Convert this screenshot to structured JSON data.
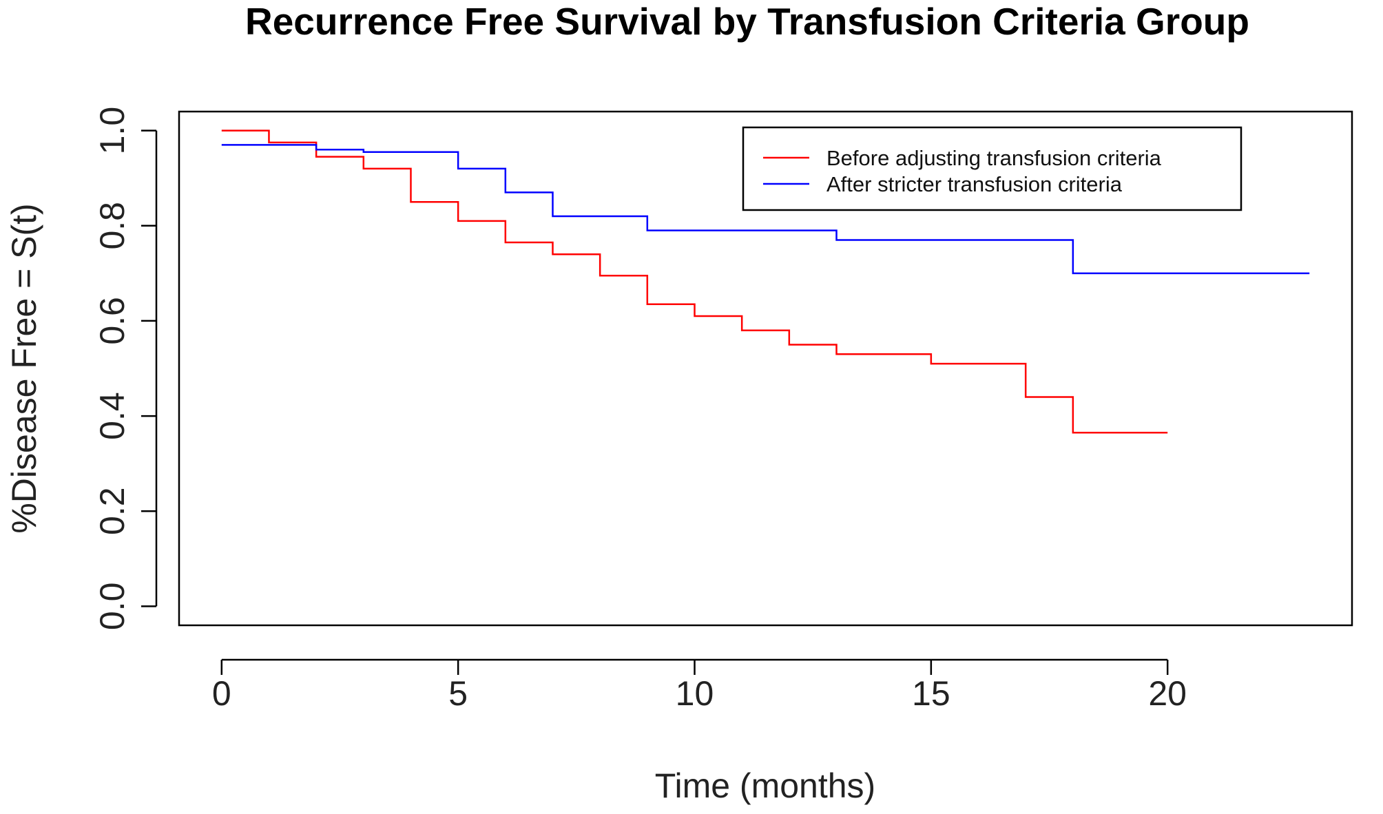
{
  "chart_data": {
    "type": "line",
    "title": "Recurrence Free Survival by Transfusion Criteria Group",
    "xlabel": "Time (months)",
    "ylabel": "%Disease Free = S(t)",
    "xlim": [
      -0.9,
      23.9
    ],
    "ylim": [
      -0.04,
      1.04
    ],
    "xticks": [
      0,
      5,
      10,
      15,
      20
    ],
    "yticks": [
      0.0,
      0.2,
      0.4,
      0.6,
      0.8,
      1.0
    ],
    "xtick_labels": [
      "0",
      "5",
      "10",
      "15",
      "20"
    ],
    "ytick_labels": [
      "0.0",
      "0.2",
      "0.4",
      "0.6",
      "0.8",
      "1.0"
    ],
    "step": "post",
    "grid": false,
    "legend_position": "top-right",
    "series": [
      {
        "name": "Before adjusting transfusion criteria",
        "color": "#ff0000",
        "x": [
          0,
          1,
          2,
          3,
          4,
          5,
          6,
          7,
          8,
          9,
          10,
          11,
          12,
          13,
          15,
          17,
          18,
          20
        ],
        "y": [
          1.0,
          0.975,
          0.945,
          0.92,
          0.85,
          0.81,
          0.765,
          0.74,
          0.695,
          0.635,
          0.61,
          0.58,
          0.55,
          0.53,
          0.51,
          0.44,
          0.365,
          0.365
        ]
      },
      {
        "name": "After stricter transfusion criteria",
        "color": "#0000ff",
        "x": [
          0,
          2,
          3,
          5,
          6,
          7,
          9,
          13,
          18,
          23
        ],
        "y": [
          0.97,
          0.96,
          0.955,
          0.92,
          0.87,
          0.82,
          0.79,
          0.77,
          0.7,
          0.7
        ]
      }
    ]
  }
}
